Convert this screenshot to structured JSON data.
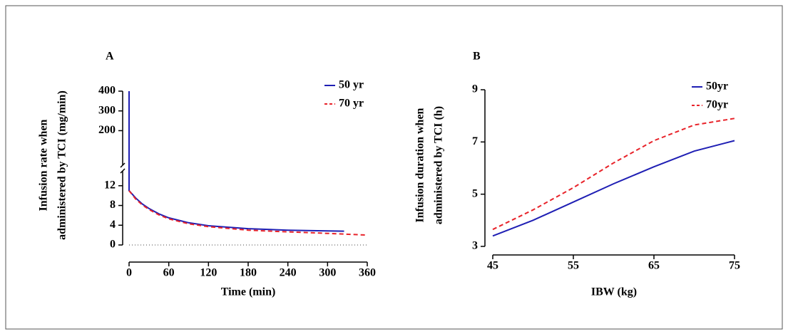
{
  "chart_data": [
    {
      "type": "line",
      "panel": "A",
      "y_label": [
        "Infusion rate when",
        "administered by TCI (mg/min)"
      ],
      "x_label": "Time (min)",
      "x": [
        0,
        0,
        10,
        20,
        30,
        45,
        60,
        90,
        120,
        180,
        240,
        300,
        325,
        360
      ],
      "series": [
        {
          "name": "50 yr",
          "color": "#1f1fb4",
          "dash": false,
          "values": [
            400,
            11,
            9.5,
            8.3,
            7.4,
            6.3,
            5.5,
            4.5,
            3.9,
            3.3,
            3.0,
            2.85,
            2.8,
            null
          ]
        },
        {
          "name": "70 yr",
          "color": "#e8232a",
          "dash": true,
          "values": [
            null,
            11,
            9.3,
            8.1,
            7.2,
            6.1,
            5.3,
            4.3,
            3.7,
            3.0,
            2.65,
            2.35,
            2.2,
            2.0
          ]
        }
      ],
      "xlim": [
        0,
        360
      ],
      "xticks": [
        0,
        60,
        120,
        180,
        240,
        300,
        360
      ],
      "ylim": [
        0,
        400
      ],
      "y_break": [
        15,
        25
      ],
      "yticks": [
        0,
        4,
        8,
        12,
        200,
        300,
        400
      ]
    },
    {
      "type": "line",
      "panel": "B",
      "y_label": [
        "Infusion duration when",
        "administered by TCI (h)"
      ],
      "x_label": "IBW (kg)",
      "x": [
        45,
        50,
        55,
        60,
        65,
        70,
        75
      ],
      "series": [
        {
          "name": "50yr",
          "color": "#1f1fb4",
          "dash": false,
          "values": [
            3.4,
            4.0,
            4.7,
            5.4,
            6.05,
            6.65,
            7.05
          ]
        },
        {
          "name": "70yr",
          "color": "#e8232a",
          "dash": true,
          "values": [
            3.65,
            4.4,
            5.25,
            6.2,
            7.05,
            7.65,
            7.9
          ]
        }
      ],
      "xlim": [
        45,
        75
      ],
      "xticks": [
        45,
        55,
        65,
        75
      ],
      "ylim": [
        3,
        9
      ],
      "yticks": [
        3,
        5,
        7,
        9
      ]
    }
  ]
}
